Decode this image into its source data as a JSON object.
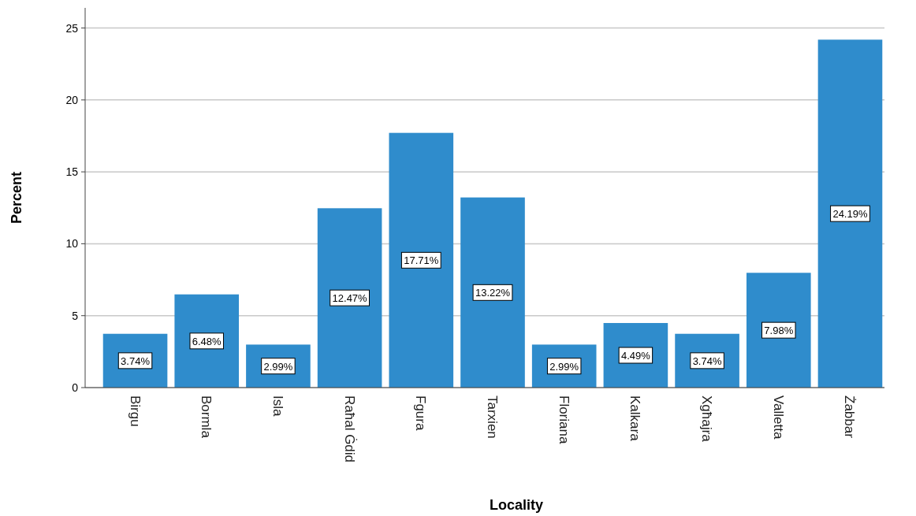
{
  "chart_data": {
    "type": "bar",
    "xlabel": "Locality",
    "ylabel": "Percent",
    "categories": [
      "Birgu",
      "Bormla",
      "Isla",
      "Raħal Ġdid",
      "Fgura",
      "Tarxien",
      "Floriana",
      "Kalkara",
      "Xgħajra",
      "Valletta",
      "Żabbar"
    ],
    "values": [
      3.74,
      6.48,
      2.99,
      12.47,
      17.71,
      13.22,
      2.99,
      4.49,
      3.74,
      7.98,
      24.19
    ],
    "value_labels": [
      "3.74%",
      "6.48%",
      "2.99%",
      "12.47%",
      "17.71%",
      "13.22%",
      "2.99%",
      "4.49%",
      "3.74%",
      "7.98%",
      "24.19%"
    ],
    "color": "#2f8ccc",
    "ylim": [
      0,
      26.4
    ],
    "yticks": [
      0,
      5,
      10,
      15,
      20,
      25
    ],
    "grid": "y"
  }
}
